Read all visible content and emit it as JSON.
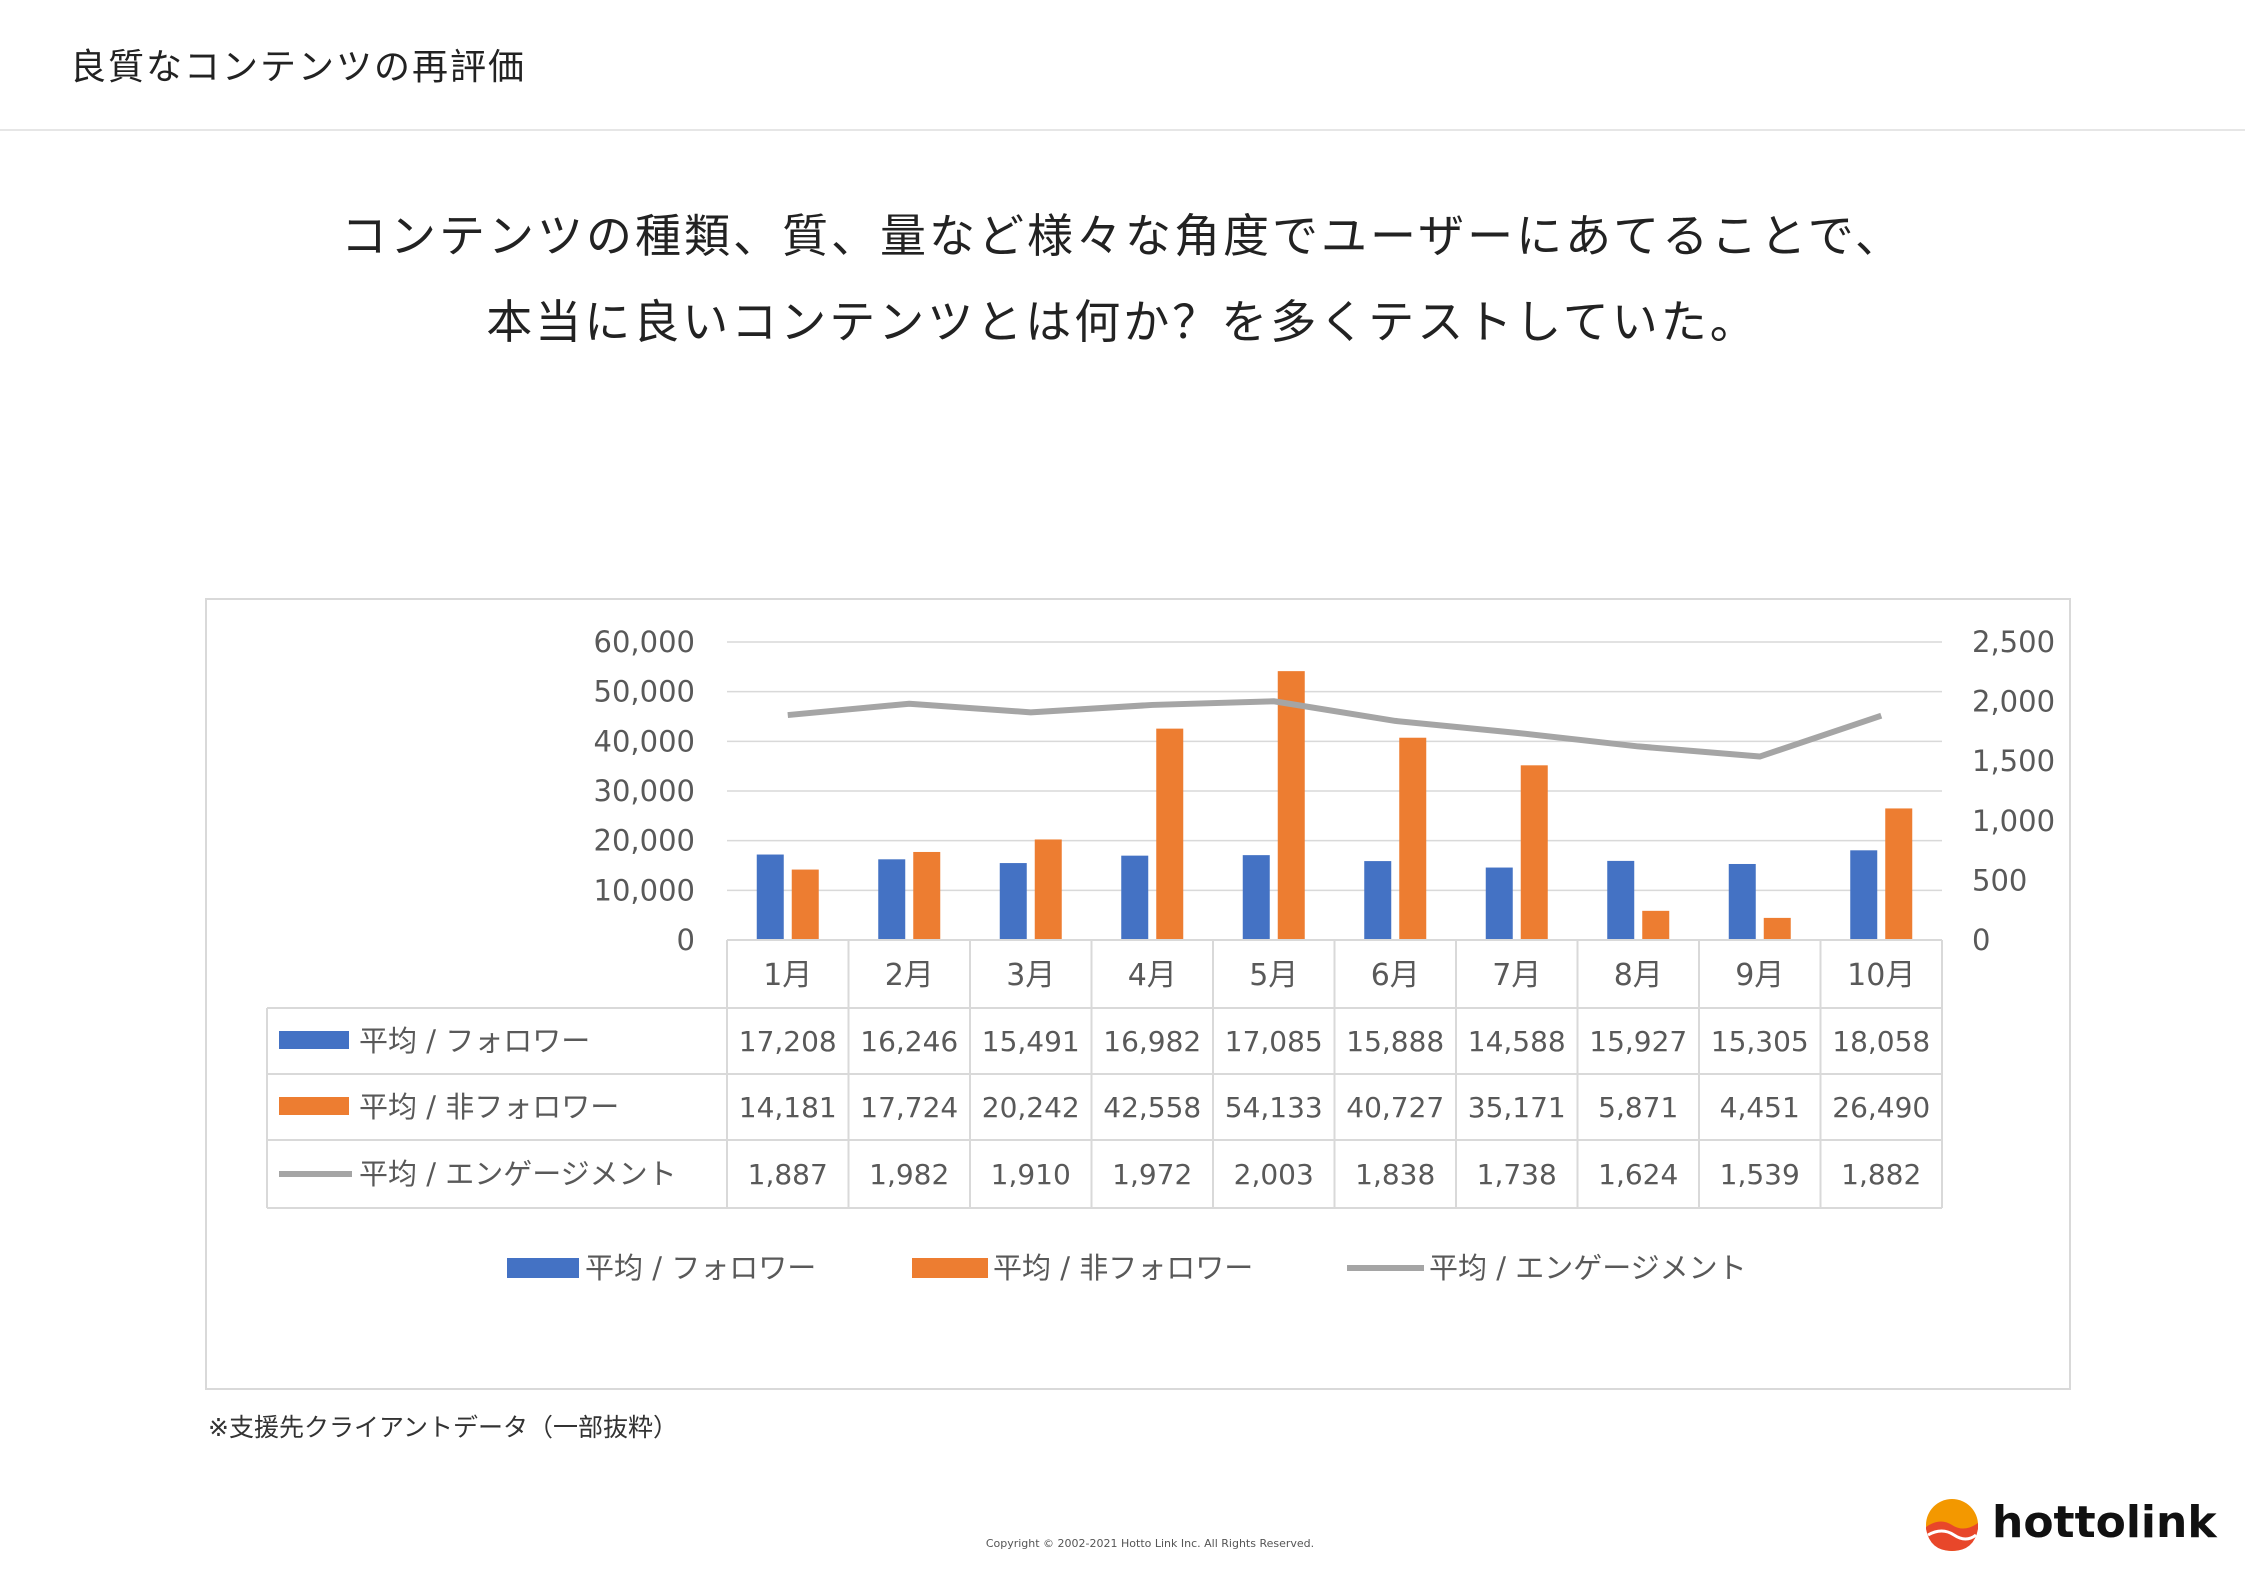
{
  "page": {
    "title": "良質なコンテンツの再評価",
    "subtitle_line1": "コンテンツの種類、質、量など様々な角度でユーザーにあてることで、",
    "subtitle_line2": "本当に良いコンテンツとは何か？を多くテストしていた。",
    "note": "※支援先クライアントデータ（一部抜粋）",
    "copyright": "Copyright © 2002-2021 Hotto Link Inc. All Rights Reserved.",
    "logo_text": "hottolink"
  },
  "colors": {
    "follower": "#4472C4",
    "non_follower": "#ED7D31",
    "engagement": "#A5A5A5",
    "axis_text": "#595959",
    "grid": "#d9d9d9",
    "logo_orange": "#F39800",
    "logo_red": "#E8472A"
  },
  "chart_data": {
    "type": "bar",
    "categories": [
      "1月",
      "2月",
      "3月",
      "4月",
      "5月",
      "6月",
      "7月",
      "8月",
      "9月",
      "10月"
    ],
    "y_left": {
      "ticks": [
        "0",
        "10,000",
        "20,000",
        "30,000",
        "40,000",
        "50,000",
        "60,000"
      ],
      "ylim": [
        0,
        60000
      ]
    },
    "y_right": {
      "ticks": [
        "0",
        "500",
        "1,000",
        "1,500",
        "2,000",
        "2,500"
      ],
      "ylim": [
        0,
        2500
      ]
    },
    "grid": true,
    "legend_position": "bottom",
    "series": [
      {
        "name": "平均 / フォロワー",
        "type": "bar",
        "axis": "left",
        "values": [
          17208,
          16246,
          15491,
          16982,
          17085,
          15888,
          14588,
          15927,
          15305,
          18058
        ],
        "labels": [
          "17,208",
          "16,246",
          "15,491",
          "16,982",
          "17,085",
          "15,888",
          "14,588",
          "15,927",
          "15,305",
          "18,058"
        ]
      },
      {
        "name": "平均 / 非フォロワー",
        "type": "bar",
        "axis": "left",
        "values": [
          14181,
          17724,
          20242,
          42558,
          54133,
          40727,
          35171,
          5871,
          4451,
          26490
        ],
        "labels": [
          "14,181",
          "17,724",
          "20,242",
          "42,558",
          "54,133",
          "40,727",
          "35,171",
          "5,871",
          "4,451",
          "26,490"
        ]
      },
      {
        "name": "平均 / エンゲージメント",
        "type": "line",
        "axis": "right",
        "values": [
          1887,
          1982,
          1910,
          1972,
          2003,
          1838,
          1738,
          1624,
          1539,
          1882
        ],
        "labels": [
          "1,887",
          "1,982",
          "1,910",
          "1,972",
          "2,003",
          "1,838",
          "1,738",
          "1,624",
          "1,539",
          "1,882"
        ]
      }
    ]
  }
}
